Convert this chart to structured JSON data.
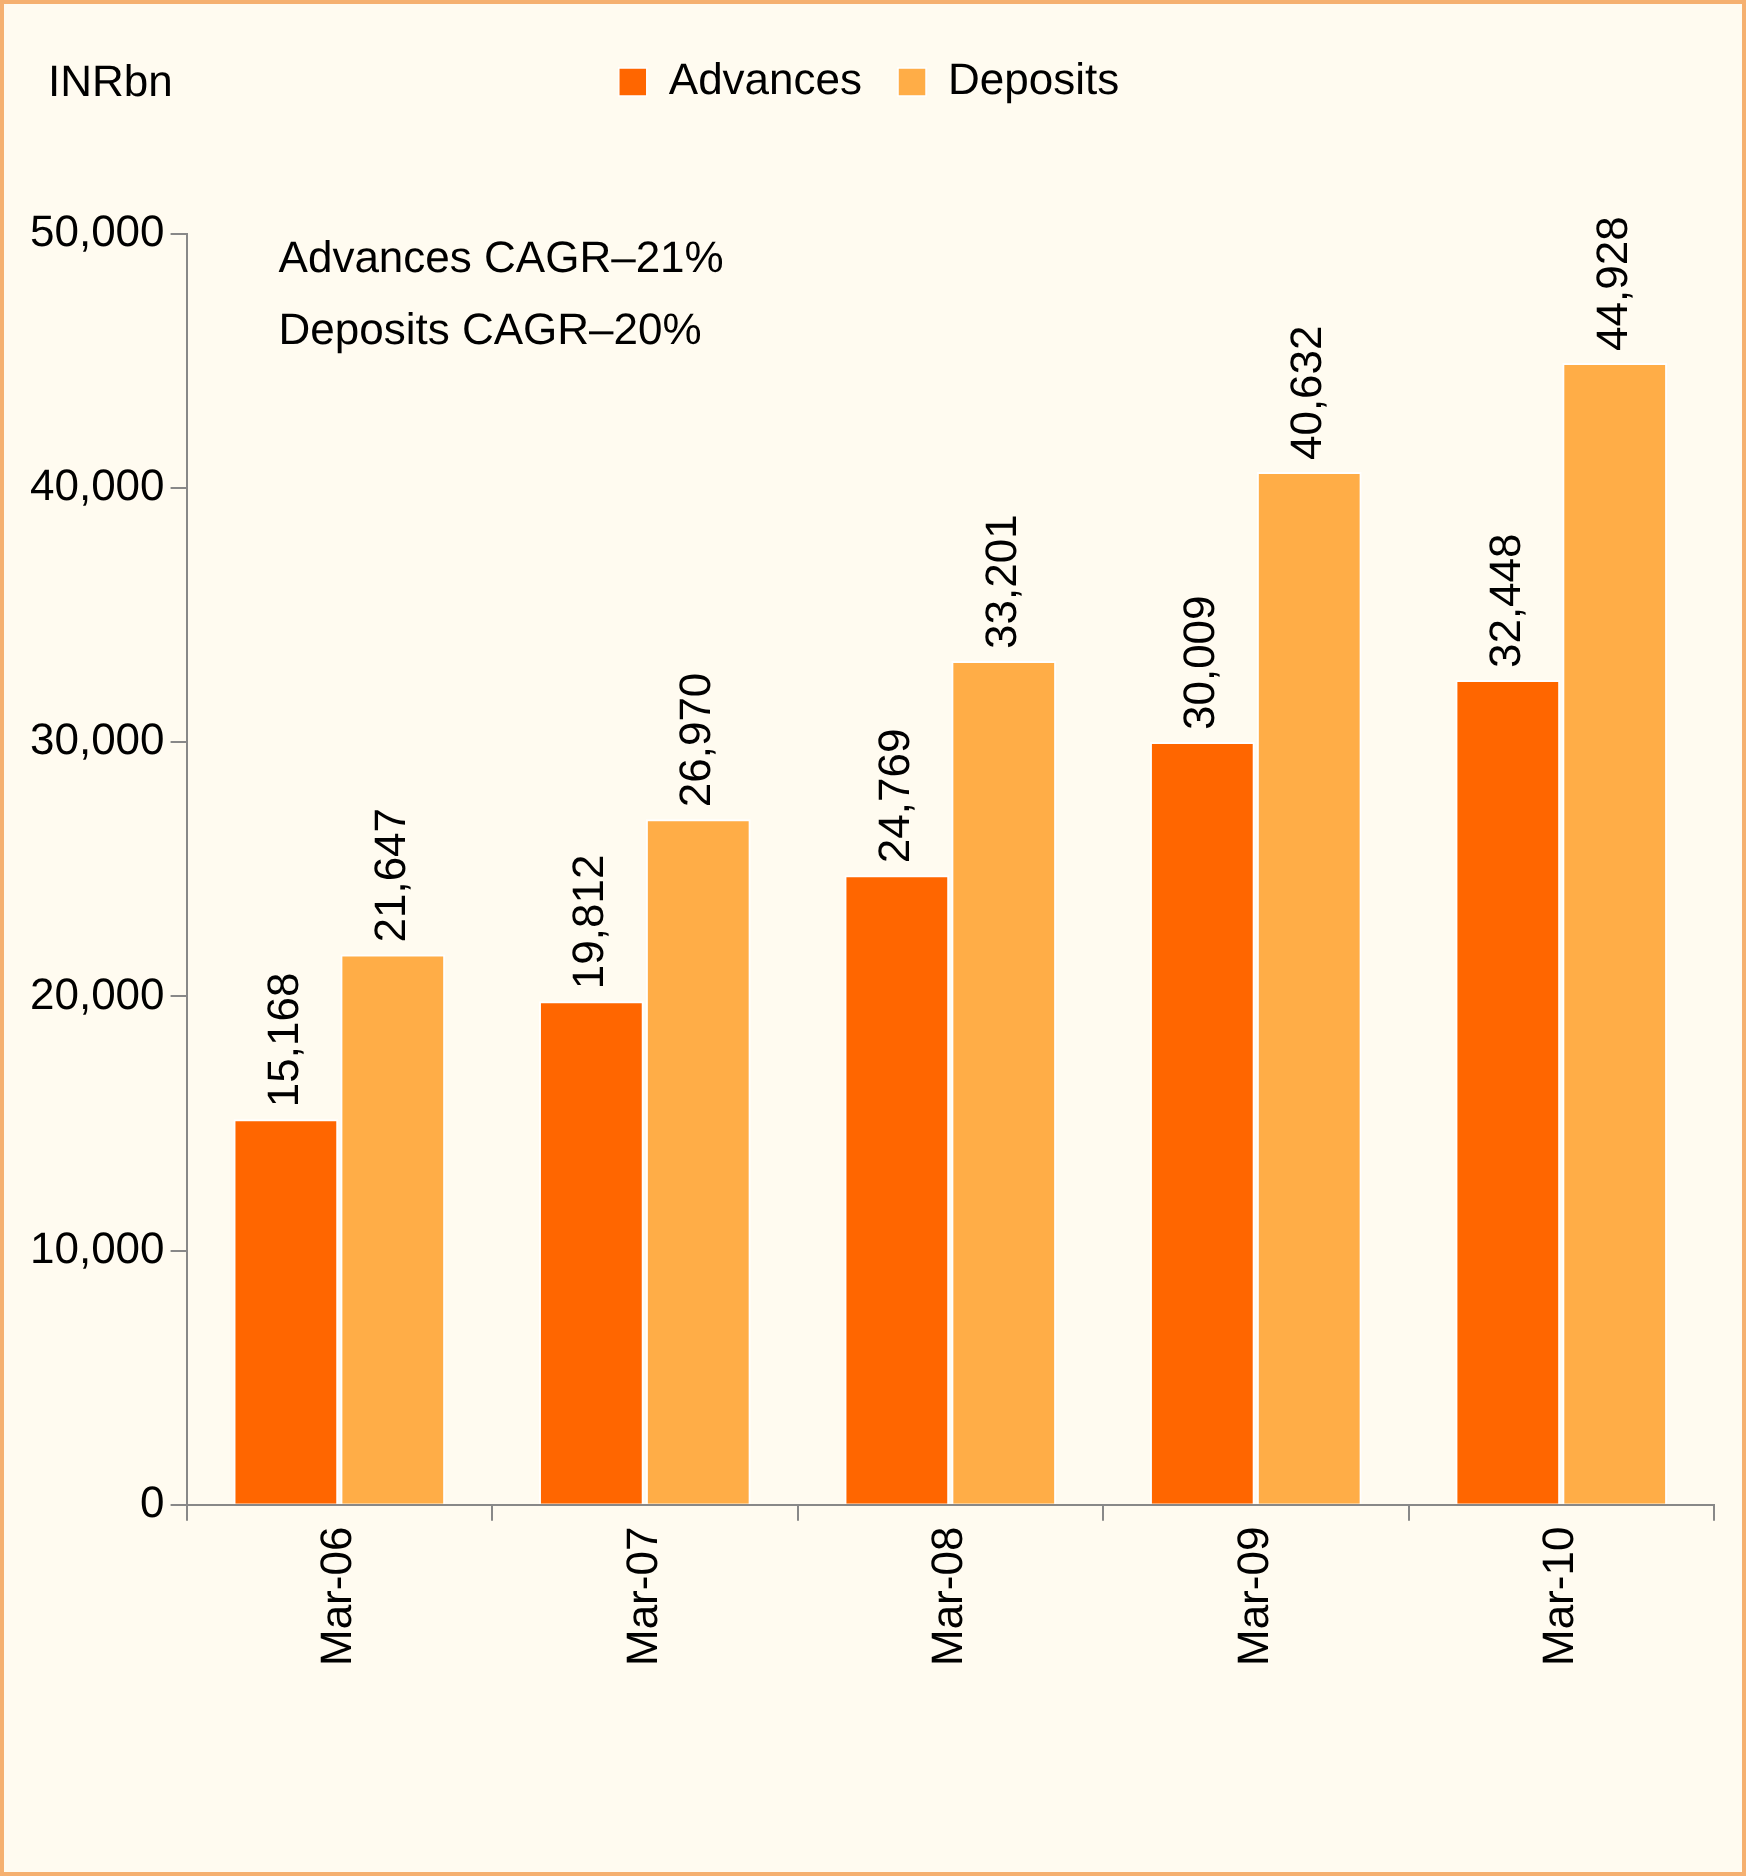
{
  "chart_data": {
    "type": "bar",
    "ylabel": "INRbn",
    "categories": [
      "Mar-06",
      "Mar-07",
      "Mar-08",
      "Mar-09",
      "Mar-10"
    ],
    "series": [
      {
        "name": "Advances",
        "color": "#ff6600",
        "values": [
          15168,
          19812,
          24769,
          30009,
          32448
        ],
        "value_labels": [
          "15,168",
          "19,812",
          "24,769",
          "30,009",
          "32,448"
        ]
      },
      {
        "name": "Deposits",
        "color": "#ffad47",
        "values": [
          21647,
          26970,
          33201,
          40632,
          44928
        ],
        "value_labels": [
          "21,647",
          "26,970",
          "33,201",
          "40,632",
          "44,928"
        ]
      }
    ],
    "ylim": [
      0,
      50000
    ],
    "yticks": [
      0,
      {
        "value": 10000,
        "label": "10,000"
      },
      {
        "value": 20000,
        "label": "20,000"
      },
      {
        "value": 30000,
        "label": "30,000"
      },
      {
        "value": 40000,
        "label": "40,000"
      },
      {
        "value": 50000,
        "label": "50,000"
      }
    ],
    "grid": false,
    "legend": "top",
    "annotations": [
      "Advances CAGR–21%",
      "Deposits CAGR–20%"
    ]
  }
}
